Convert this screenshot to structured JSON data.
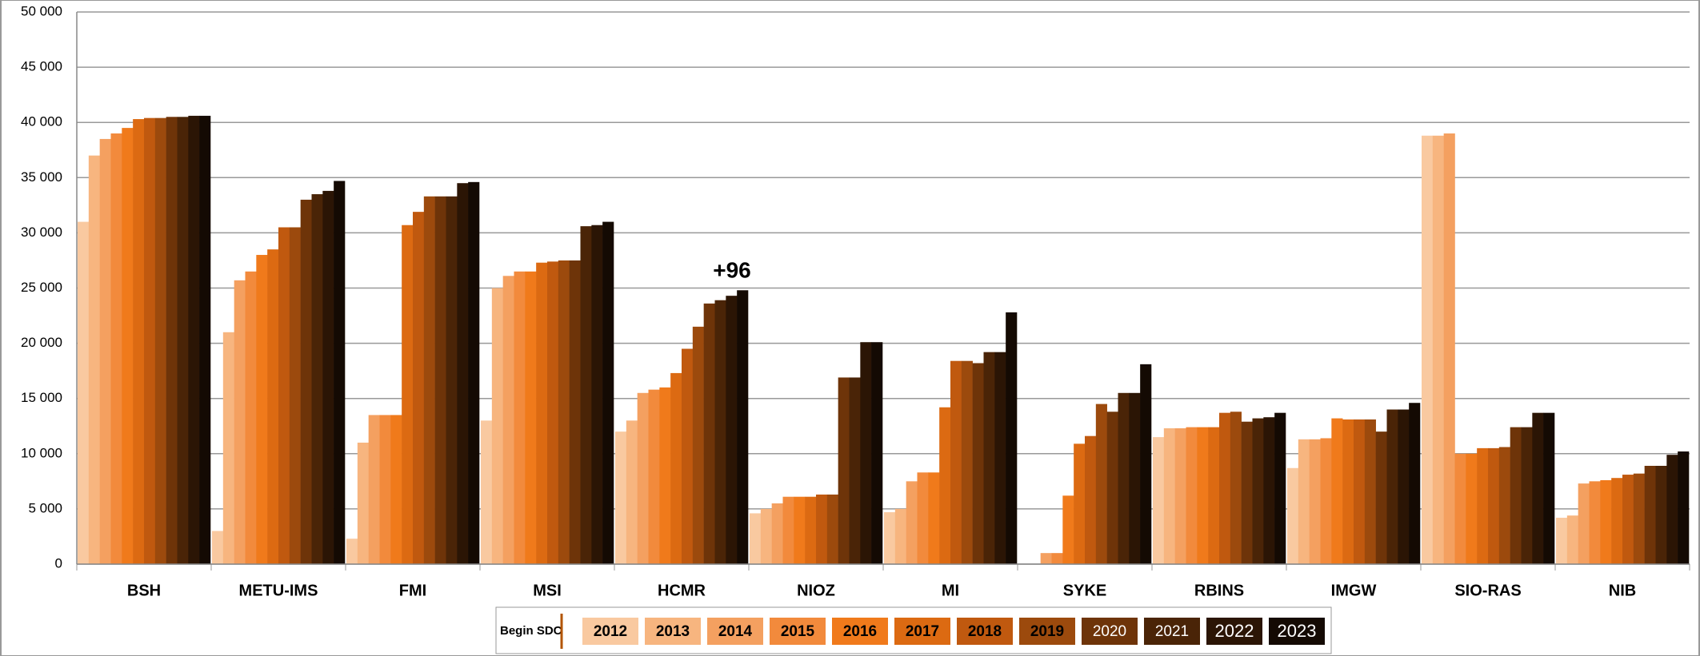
{
  "chart_data": {
    "type": "bar",
    "annotation": "+96",
    "begin_label": "Begin SDC",
    "begin_color": "#b35400",
    "categories": [
      "BSH",
      "METU-IMS",
      "FMI",
      "MSI",
      "HCMR",
      "NIOZ",
      "MI",
      "SYKE",
      "RBINS",
      "IMGW",
      "SIO-RAS",
      "NIB"
    ],
    "series": [
      {
        "name": "2012",
        "color": "#f9c9a0",
        "values": [
          31000,
          3000,
          2300,
          13000,
          12000,
          4600,
          4700,
          0,
          11500,
          8700,
          38800,
          4200
        ]
      },
      {
        "name": "2013",
        "color": "#f7b57f",
        "values": [
          37000,
          21000,
          11000,
          25000,
          13000,
          5000,
          5000,
          0,
          12300,
          11300,
          38800,
          4400
        ]
      },
      {
        "name": "2014",
        "color": "#f4a060",
        "values": [
          38500,
          25700,
          13500,
          26100,
          15500,
          5500,
          7500,
          1000,
          12300,
          11300,
          39000,
          7300
        ]
      },
      {
        "name": "2015",
        "color": "#f28a3c",
        "values": [
          39000,
          26500,
          13500,
          26500,
          15800,
          6100,
          8300,
          1000,
          12400,
          11400,
          10000,
          7500
        ]
      },
      {
        "name": "2016",
        "color": "#f07a1b",
        "values": [
          39500,
          28000,
          13500,
          26500,
          16000,
          6100,
          8300,
          6200,
          12400,
          13200,
          10000,
          7600
        ]
      },
      {
        "name": "2017",
        "color": "#dc6a12",
        "values": [
          40300,
          28500,
          30700,
          27300,
          17300,
          6100,
          14200,
          10900,
          12400,
          13100,
          10500,
          7800
        ]
      },
      {
        "name": "2018",
        "color": "#c0590f",
        "values": [
          40400,
          30500,
          31900,
          27400,
          19500,
          6300,
          18400,
          11600,
          13700,
          13100,
          10500,
          8100
        ]
      },
      {
        "name": "2019",
        "color": "#9c4a0d",
        "values": [
          40400,
          30500,
          33300,
          27500,
          21500,
          6300,
          18400,
          14500,
          13800,
          13100,
          10600,
          8200
        ]
      },
      {
        "name": "2020",
        "color": "#6e3409",
        "values": [
          40500,
          33000,
          33300,
          27500,
          23600,
          16900,
          18200,
          13800,
          12900,
          12000,
          12400,
          8900
        ]
      },
      {
        "name": "2021",
        "color": "#4a2407",
        "values": [
          40500,
          33500,
          33300,
          30600,
          23900,
          16900,
          19200,
          15500,
          13200,
          14000,
          12400,
          8900
        ]
      },
      {
        "name": "2022",
        "color": "#2b1505",
        "values": [
          40600,
          33800,
          34500,
          30700,
          24300,
          20100,
          19200,
          15500,
          13300,
          14000,
          13700,
          9900
        ]
      },
      {
        "name": "2023",
        "color": "#140a03",
        "values": [
          40600,
          34700,
          34600,
          31000,
          24800,
          20100,
          22800,
          18100,
          13700,
          14600,
          13700,
          10200
        ]
      }
    ],
    "ylim": [
      0,
      50000
    ],
    "yticks": [
      0,
      {
        "value": 5000,
        "label": "5 000"
      },
      {
        "value": 10000,
        "label": "10 000"
      },
      {
        "value": 15000,
        "label": "15 000"
      },
      {
        "value": 20000,
        "label": "20 000"
      },
      {
        "value": 25000,
        "label": "25 000"
      },
      {
        "value": 30000,
        "label": "30 000"
      },
      {
        "value": 35000,
        "label": "35 000"
      },
      {
        "value": 40000,
        "label": "40 000"
      },
      {
        "value": 45000,
        "label": "45 000"
      },
      {
        "value": 50000,
        "label": "50 000"
      }
    ],
    "grid": true
  }
}
